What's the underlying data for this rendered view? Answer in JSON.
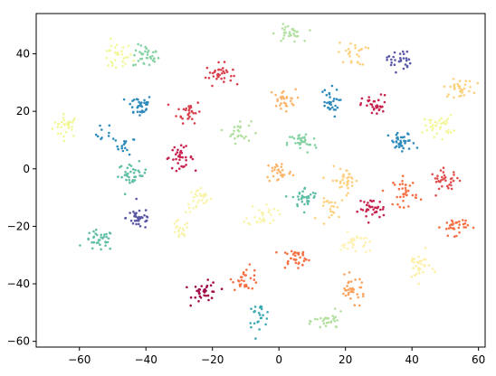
{
  "chart_data": {
    "type": "scatter",
    "title": "",
    "xlabel": "",
    "ylabel": "",
    "xlim": [
      -73,
      62
    ],
    "ylim": [
      -62,
      54
    ],
    "xticks": [
      -60,
      -40,
      -20,
      0,
      20,
      40,
      60
    ],
    "yticks": [
      -60,
      -40,
      -20,
      0,
      20,
      40
    ],
    "xtick_labels": [
      "−60",
      "−40",
      "−20",
      "0",
      "20",
      "40",
      "60"
    ],
    "ytick_labels": [
      "−60",
      "−40",
      "−20",
      "0",
      "20",
      "40"
    ],
    "grid": false,
    "legend": "none",
    "clusters": [
      {
        "x": -64,
        "y": 15,
        "sx": 2.0,
        "sy": 2.0,
        "color": "#f2f798",
        "n": 30
      },
      {
        "x": -52,
        "y": 12,
        "sx": 1.5,
        "sy": 2.0,
        "color": "#2f8bbc",
        "n": 10
      },
      {
        "x": -46,
        "y": 8,
        "sx": 1.5,
        "sy": 1.5,
        "color": "#2f8bbc",
        "n": 15
      },
      {
        "x": -49,
        "y": 39,
        "sx": 2.5,
        "sy": 2.5,
        "color": "#f2f798",
        "n": 30
      },
      {
        "x": -40,
        "y": 39,
        "sx": 2.0,
        "sy": 2.0,
        "color": "#86d2a4",
        "n": 35
      },
      {
        "x": -42,
        "y": 22,
        "sx": 2.0,
        "sy": 2.0,
        "color": "#2f8bbc",
        "n": 35
      },
      {
        "x": -27,
        "y": 20,
        "sx": 1.8,
        "sy": 2.0,
        "color": "#d9414f",
        "n": 30
      },
      {
        "x": -18,
        "y": 33,
        "sx": 2.0,
        "sy": 1.8,
        "color": "#d9414f",
        "n": 35
      },
      {
        "x": -12,
        "y": 13,
        "sx": 1.8,
        "sy": 2.0,
        "color": "#b3e0a1",
        "n": 25
      },
      {
        "x": -44,
        "y": -2,
        "sx": 2.2,
        "sy": 2.0,
        "color": "#5fbea6",
        "n": 35
      },
      {
        "x": -30,
        "y": 4,
        "sx": 2.2,
        "sy": 1.8,
        "color": "#c8234e",
        "n": 35
      },
      {
        "x": -24,
        "y": -11,
        "sx": 2.0,
        "sy": 2.2,
        "color": "#f8f4ab",
        "n": 30
      },
      {
        "x": -42,
        "y": -17,
        "sx": 2.0,
        "sy": 2.0,
        "color": "#5a57a6",
        "n": 35
      },
      {
        "x": -30,
        "y": -22,
        "sx": 1.5,
        "sy": 2.0,
        "color": "#f8f4ab",
        "n": 20
      },
      {
        "x": -54,
        "y": -25,
        "sx": 2.2,
        "sy": 1.8,
        "color": "#5fbea6",
        "n": 35
      },
      {
        "x": -22,
        "y": -43,
        "sx": 2.0,
        "sy": 1.8,
        "color": "#a00b48",
        "n": 35
      },
      {
        "x": -10,
        "y": -38,
        "sx": 2.0,
        "sy": 2.0,
        "color": "#f57145",
        "n": 30
      },
      {
        "x": -6,
        "y": -51,
        "sx": 1.8,
        "sy": 2.0,
        "color": "#3eaab3",
        "n": 25
      },
      {
        "x": 3,
        "y": 47,
        "sx": 2.0,
        "sy": 1.5,
        "color": "#b3e0a1",
        "n": 30
      },
      {
        "x": 1,
        "y": 24,
        "sx": 2.0,
        "sy": 1.8,
        "color": "#fbb56b",
        "n": 30
      },
      {
        "x": 7,
        "y": 9,
        "sx": 2.2,
        "sy": 1.8,
        "color": "#86d2a4",
        "n": 35
      },
      {
        "x": 0,
        "y": -1,
        "sx": 2.0,
        "sy": 2.0,
        "color": "#fbb56b",
        "n": 30
      },
      {
        "x": 8,
        "y": -10,
        "sx": 2.0,
        "sy": 1.8,
        "color": "#5fbea6",
        "n": 35
      },
      {
        "x": -5,
        "y": -16,
        "sx": 2.2,
        "sy": 2.0,
        "color": "#f8f4ab",
        "n": 30
      },
      {
        "x": 5,
        "y": -31,
        "sx": 2.2,
        "sy": 1.8,
        "color": "#f57145",
        "n": 35
      },
      {
        "x": 15,
        "y": 23,
        "sx": 1.5,
        "sy": 2.5,
        "color": "#2f8bbc",
        "n": 30
      },
      {
        "x": 22,
        "y": 40,
        "sx": 2.2,
        "sy": 2.0,
        "color": "#fdd17f",
        "n": 25
      },
      {
        "x": 36,
        "y": 38,
        "sx": 1.8,
        "sy": 2.0,
        "color": "#5a57a6",
        "n": 30
      },
      {
        "x": 29,
        "y": 22,
        "sx": 2.0,
        "sy": 1.8,
        "color": "#c8234e",
        "n": 35
      },
      {
        "x": 37,
        "y": 9,
        "sx": 2.0,
        "sy": 1.8,
        "color": "#2f8bbc",
        "n": 40
      },
      {
        "x": 48,
        "y": 15,
        "sx": 2.2,
        "sy": 1.8,
        "color": "#f2f798",
        "n": 35
      },
      {
        "x": 54,
        "y": 28,
        "sx": 2.2,
        "sy": 1.5,
        "color": "#fdd17f",
        "n": 35
      },
      {
        "x": 20,
        "y": -4,
        "sx": 2.2,
        "sy": 2.2,
        "color": "#fdd17f",
        "n": 35
      },
      {
        "x": 28,
        "y": -14,
        "sx": 2.0,
        "sy": 1.8,
        "color": "#c8234e",
        "n": 35
      },
      {
        "x": 16,
        "y": -14,
        "sx": 1.8,
        "sy": 1.8,
        "color": "#fdd17f",
        "n": 20
      },
      {
        "x": 38,
        "y": -8,
        "sx": 1.8,
        "sy": 2.5,
        "color": "#f57145",
        "n": 35
      },
      {
        "x": 50,
        "y": -4,
        "sx": 2.2,
        "sy": 1.8,
        "color": "#e04d4d",
        "n": 35
      },
      {
        "x": 53,
        "y": -20,
        "sx": 2.0,
        "sy": 1.5,
        "color": "#f57145",
        "n": 35
      },
      {
        "x": 23,
        "y": -26,
        "sx": 2.2,
        "sy": 1.8,
        "color": "#fff1b0",
        "n": 30
      },
      {
        "x": 42,
        "y": -34,
        "sx": 1.8,
        "sy": 2.5,
        "color": "#fdf0a6",
        "n": 30
      },
      {
        "x": 22,
        "y": -42,
        "sx": 2.0,
        "sy": 2.2,
        "color": "#fba25d",
        "n": 35
      },
      {
        "x": 15,
        "y": -53,
        "sx": 2.2,
        "sy": 1.5,
        "color": "#b3e0a1",
        "n": 30
      }
    ]
  }
}
